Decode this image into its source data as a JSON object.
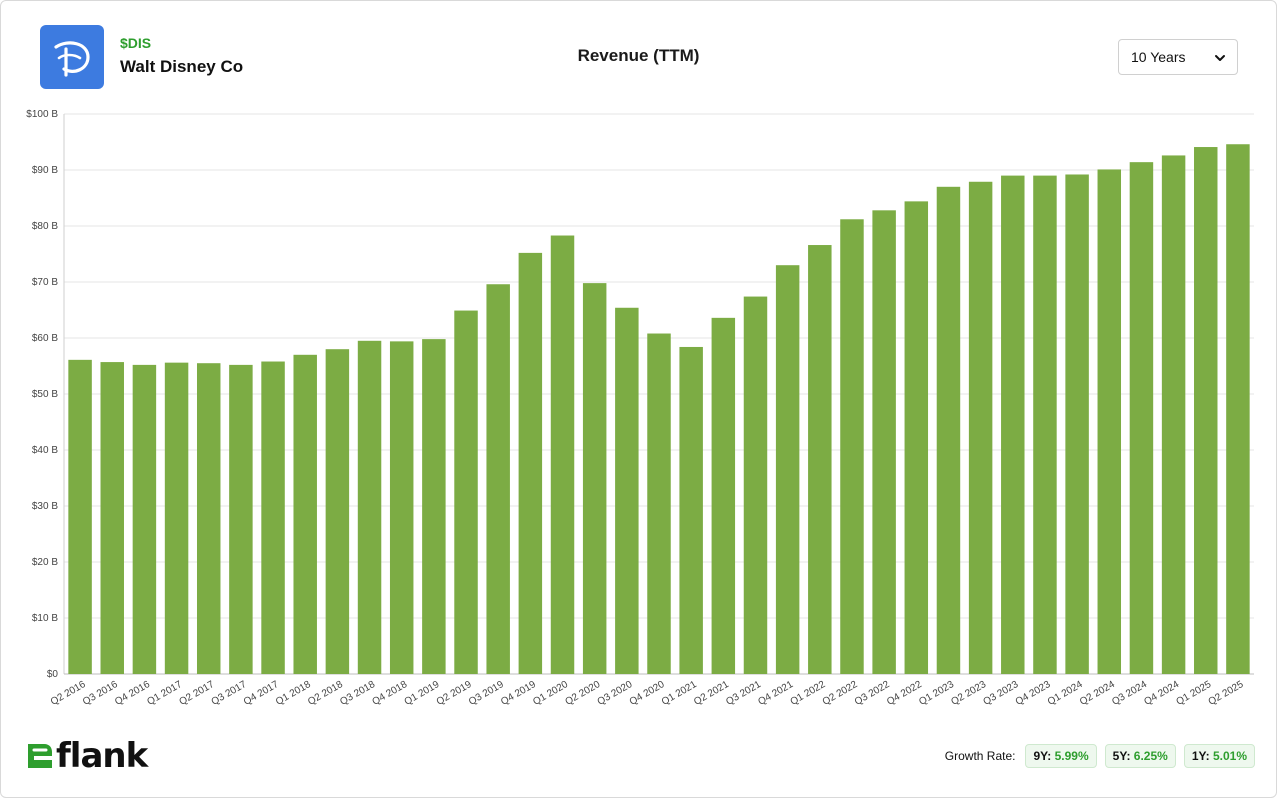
{
  "header": {
    "ticker": "$DIS",
    "company": "Walt Disney Co",
    "title": "Revenue (TTM)",
    "logo_icon": "disney-d-logo-icon",
    "logo_color": "#3d7be0"
  },
  "range_select": {
    "selected": "10 Years",
    "icon": "chevron-down-icon"
  },
  "footer": {
    "brand": "flank",
    "brand_color": "#2e9e2e",
    "growth_label": "Growth Rate:",
    "growth_rates": [
      {
        "period": "9Y:",
        "value": "5.99%"
      },
      {
        "period": "5Y:",
        "value": "6.25%"
      },
      {
        "period": "1Y:",
        "value": "5.01%"
      }
    ]
  },
  "chart_data": {
    "type": "bar",
    "bar_color": "#7cac44",
    "grid": true,
    "ylim": [
      0,
      100
    ],
    "y_ticks": [
      0,
      10,
      20,
      30,
      40,
      50,
      60,
      70,
      80,
      90,
      100
    ],
    "y_tick_labels": [
      "$0",
      "$10 B",
      "$20 B",
      "$30 B",
      "$40 B",
      "$50 B",
      "$60 B",
      "$70 B",
      "$80 B",
      "$90 B",
      "$100 B"
    ],
    "categories": [
      "Q2 2016",
      "Q3 2016",
      "Q4 2016",
      "Q1 2017",
      "Q2 2017",
      "Q3 2017",
      "Q4 2017",
      "Q1 2018",
      "Q2 2018",
      "Q3 2018",
      "Q4 2018",
      "Q1 2019",
      "Q2 2019",
      "Q3 2019",
      "Q4 2019",
      "Q1 2020",
      "Q2 2020",
      "Q3 2020",
      "Q4 2020",
      "Q1 2021",
      "Q2 2021",
      "Q3 2021",
      "Q4 2021",
      "Q1 2022",
      "Q2 2022",
      "Q3 2022",
      "Q4 2022",
      "Q1 2023",
      "Q2 2023",
      "Q3 2023",
      "Q4 2023",
      "Q1 2024",
      "Q2 2024",
      "Q3 2024",
      "Q4 2024",
      "Q1 2025",
      "Q2 2025"
    ],
    "values": [
      56.1,
      55.7,
      55.2,
      55.6,
      55.5,
      55.2,
      55.8,
      57.0,
      58.0,
      59.5,
      59.4,
      59.8,
      64.9,
      69.6,
      75.2,
      78.3,
      69.8,
      65.4,
      60.8,
      58.4,
      63.6,
      67.4,
      73.0,
      76.6,
      81.2,
      82.8,
      84.4,
      87.0,
      87.9,
      89.0,
      89.0,
      89.2,
      90.1,
      91.4,
      92.6,
      94.1,
      94.6
    ],
    "title": "Revenue (TTM)",
    "xlabel": "",
    "ylabel": ""
  }
}
